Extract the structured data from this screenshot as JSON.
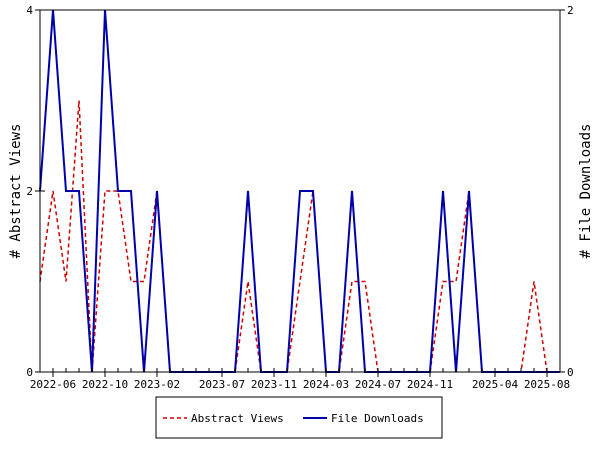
{
  "chart_data": {
    "type": "line",
    "title": "",
    "xlabel": "",
    "ylabel_left": "# Abstract Views",
    "ylabel_right": "# File Downloads",
    "x": [
      "2022-05",
      "2022-06",
      "2022-07",
      "2022-08",
      "2022-09",
      "2022-10",
      "2022-11",
      "2022-12",
      "2023-01",
      "2023-02",
      "2023-03",
      "2023-04",
      "2023-05",
      "2023-06",
      "2023-07",
      "2023-08",
      "2023-09",
      "2023-10",
      "2023-11",
      "2023-12",
      "2024-01",
      "2024-02",
      "2024-03",
      "2024-04",
      "2024-05",
      "2024-06",
      "2024-07",
      "2024-08",
      "2024-09",
      "2024-10",
      "2024-11",
      "2024-12",
      "2025-01",
      "2025-02",
      "2025-03",
      "2025-04",
      "2025-05",
      "2025-06",
      "2025-07",
      "2025-08",
      "2025-09"
    ],
    "x_tick_labels": [
      "2022-06",
      "2022-10",
      "2023-02",
      "2023-07",
      "2023-11",
      "2024-03",
      "2024-07",
      "2024-11",
      "2025-04",
      "2025-08"
    ],
    "x_tick_months": [
      "2022-06",
      "2022-10",
      "2023-02",
      "2023-07",
      "2023-11",
      "2024-03",
      "2024-07",
      "2024-11",
      "2025-04",
      "2025-08"
    ],
    "y_left_range": [
      0,
      4
    ],
    "y_left_ticks": [
      0,
      2,
      4
    ],
    "y_right_range": [
      0,
      2
    ],
    "y_right_ticks": [
      0,
      2
    ],
    "grid": false,
    "legend_position": "bottom",
    "series": [
      {
        "name": "Abstract Views",
        "axis": "left",
        "color": "#cc0000",
        "style": "dashed",
        "values": [
          1,
          2,
          1,
          3,
          0,
          2,
          2,
          1,
          1,
          2,
          0,
          0,
          0,
          0,
          0,
          0,
          1,
          0,
          0,
          0,
          1,
          2,
          0,
          0,
          1,
          1,
          0,
          0,
          0,
          0,
          0,
          1,
          1,
          2,
          0,
          0,
          0,
          0,
          1,
          0,
          0
        ]
      },
      {
        "name": "File Downloads",
        "axis": "right",
        "color": "#0000aa",
        "style": "solid",
        "values": [
          1,
          2,
          1,
          1,
          0,
          2,
          1,
          1,
          0,
          1,
          0,
          0,
          0,
          0,
          0,
          0,
          1,
          0,
          0,
          0,
          1,
          1,
          0,
          0,
          1,
          0,
          0,
          0,
          0,
          0,
          0,
          1,
          0,
          1,
          0,
          0,
          0,
          0,
          0,
          0,
          0
        ]
      }
    ]
  }
}
